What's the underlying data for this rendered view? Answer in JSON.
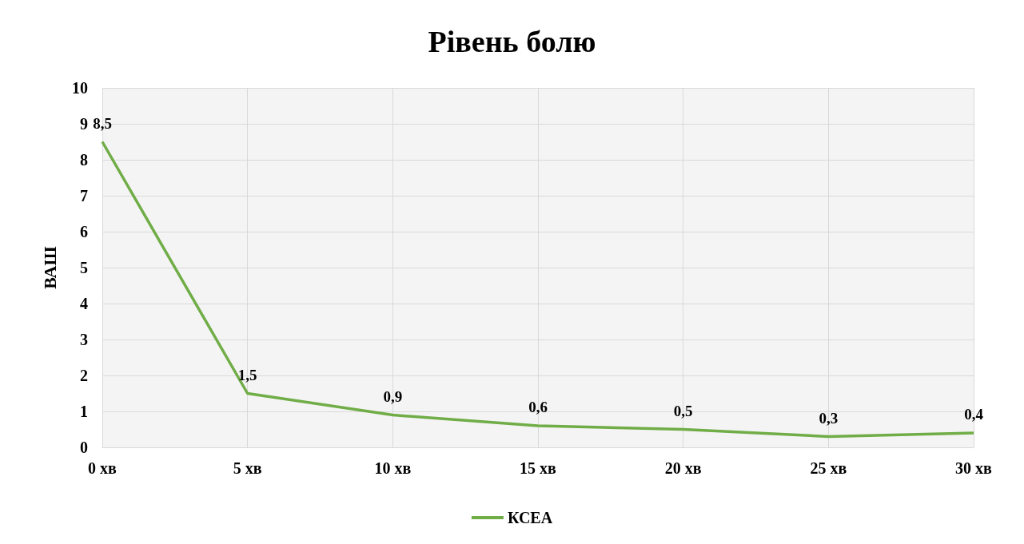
{
  "chart_data": {
    "type": "line",
    "title": "Рівень болю",
    "ylabel": "ВАШ",
    "categories": [
      "0 хв",
      "5 хв",
      "10 хв",
      "15 хв",
      "20 хв",
      "25 хв",
      "30 хв"
    ],
    "series": [
      {
        "name": "КСЕА",
        "color": "#70ad47",
        "values": [
          8.5,
          1.5,
          0.9,
          0.6,
          0.5,
          0.3,
          0.4
        ],
        "value_labels": [
          "8,5",
          "1,5",
          "0,9",
          "0,6",
          "0,5",
          "0,3",
          "0,4"
        ]
      }
    ],
    "ylim": [
      0,
      10
    ],
    "yticks": [
      0,
      1,
      2,
      3,
      4,
      5,
      6,
      7,
      8,
      9,
      10
    ],
    "grid": true,
    "legend": "bottom",
    "marker": "none",
    "line_style": "solid"
  }
}
